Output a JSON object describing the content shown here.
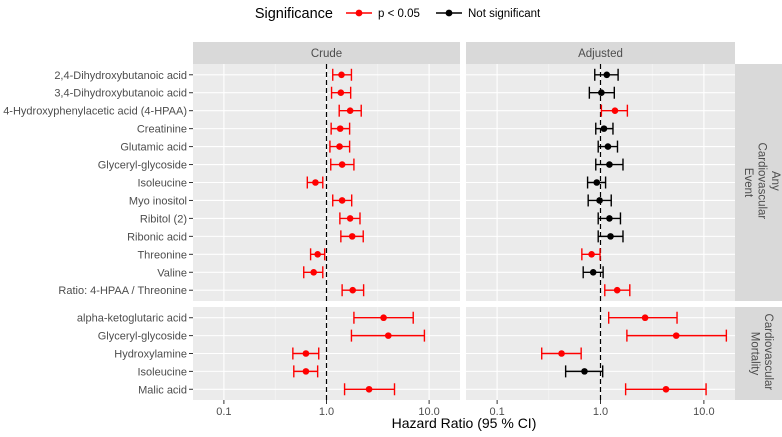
{
  "chart_data": {
    "type": "forest",
    "x_axis_label": "Hazard Ratio (95 % CI)",
    "x_scale": "log10",
    "xlim": [
      0.05,
      20
    ],
    "x_ticks": [
      0.1,
      1.0,
      10.0
    ],
    "x_tick_labels": [
      "0.1",
      "1.0",
      "10.0"
    ],
    "reference_line": 1.0,
    "legend": {
      "title": "Significance",
      "position": "top",
      "entries": [
        {
          "label": "p < 0.05",
          "color": "#ff0000"
        },
        {
          "label": "Not significant",
          "color": "#000000"
        }
      ]
    },
    "column_panels": [
      "Crude",
      "Adjusted"
    ],
    "row_panels": [
      {
        "title_lines": [
          "Any",
          "Cardiovascular",
          "Event"
        ],
        "rows": [
          {
            "label": "2,4-Dihydroxybutanoic acid",
            "crude": {
              "hr": 1.4,
              "lo": 1.15,
              "hi": 1.75,
              "sig": true
            },
            "adjusted": {
              "hr": 1.15,
              "lo": 0.88,
              "hi": 1.48,
              "sig": false
            }
          },
          {
            "label": "3,4-Dihydroxybutanoic acid",
            "crude": {
              "hr": 1.38,
              "lo": 1.12,
              "hi": 1.72,
              "sig": true
            },
            "adjusted": {
              "hr": 1.02,
              "lo": 0.78,
              "hi": 1.36,
              "sig": false
            }
          },
          {
            "label": "4-Hydroxyphenylacetic acid (4-HPAA)",
            "crude": {
              "hr": 1.7,
              "lo": 1.33,
              "hi": 2.18,
              "sig": true
            },
            "adjusted": {
              "hr": 1.38,
              "lo": 1.02,
              "hi": 1.82,
              "sig": true
            }
          },
          {
            "label": "Creatinine",
            "crude": {
              "hr": 1.36,
              "lo": 1.11,
              "hi": 1.68,
              "sig": true
            },
            "adjusted": {
              "hr": 1.08,
              "lo": 0.9,
              "hi": 1.32,
              "sig": false
            }
          },
          {
            "label": "Glutamic acid",
            "crude": {
              "hr": 1.34,
              "lo": 1.08,
              "hi": 1.68,
              "sig": true
            },
            "adjusted": {
              "hr": 1.18,
              "lo": 0.95,
              "hi": 1.46,
              "sig": false
            }
          },
          {
            "label": "Glyceryl-glycoside",
            "crude": {
              "hr": 1.42,
              "lo": 1.1,
              "hi": 1.85,
              "sig": true
            },
            "adjusted": {
              "hr": 1.22,
              "lo": 0.9,
              "hi": 1.65,
              "sig": false
            }
          },
          {
            "label": "Isoleucine",
            "crude": {
              "hr": 0.78,
              "lo": 0.65,
              "hi": 0.92,
              "sig": true
            },
            "adjusted": {
              "hr": 0.92,
              "lo": 0.75,
              "hi": 1.12,
              "sig": false
            }
          },
          {
            "label": "Myo inositol",
            "crude": {
              "hr": 1.42,
              "lo": 1.15,
              "hi": 1.76,
              "sig": true
            },
            "adjusted": {
              "hr": 0.98,
              "lo": 0.76,
              "hi": 1.27,
              "sig": false
            }
          },
          {
            "label": "Ribitol (2)",
            "crude": {
              "hr": 1.7,
              "lo": 1.35,
              "hi": 2.12,
              "sig": true
            },
            "adjusted": {
              "hr": 1.22,
              "lo": 0.95,
              "hi": 1.56,
              "sig": false
            }
          },
          {
            "label": "Ribonic acid",
            "crude": {
              "hr": 1.78,
              "lo": 1.38,
              "hi": 2.28,
              "sig": true
            },
            "adjusted": {
              "hr": 1.25,
              "lo": 0.95,
              "hi": 1.65,
              "sig": false
            }
          },
          {
            "label": "Threonine",
            "crude": {
              "hr": 0.82,
              "lo": 0.7,
              "hi": 0.96,
              "sig": true
            },
            "adjusted": {
              "hr": 0.82,
              "lo": 0.66,
              "hi": 0.99,
              "sig": true
            }
          },
          {
            "label": "Valine",
            "crude": {
              "hr": 0.75,
              "lo": 0.6,
              "hi": 0.92,
              "sig": true
            },
            "adjusted": {
              "hr": 0.85,
              "lo": 0.68,
              "hi": 1.06,
              "sig": false
            }
          },
          {
            "label": "Ratio: 4-HPAA / Threonine",
            "crude": {
              "hr": 1.8,
              "lo": 1.42,
              "hi": 2.3,
              "sig": true
            },
            "adjusted": {
              "hr": 1.45,
              "lo": 1.1,
              "hi": 1.92,
              "sig": true
            }
          }
        ]
      },
      {
        "title_lines": [
          "Cardiovascular",
          "Mortality"
        ],
        "rows": [
          {
            "label": "alpha-ketoglutaric acid",
            "crude": {
              "hr": 3.6,
              "lo": 1.85,
              "hi": 7.0,
              "sig": true
            },
            "adjusted": {
              "hr": 2.7,
              "lo": 1.2,
              "hi": 5.5,
              "sig": true
            }
          },
          {
            "label": "Glyceryl-glycoside",
            "crude": {
              "hr": 4.0,
              "lo": 1.75,
              "hi": 9.0,
              "sig": true
            },
            "adjusted": {
              "hr": 5.4,
              "lo": 1.8,
              "hi": 16.5,
              "sig": true
            }
          },
          {
            "label": "Hydroxylamine",
            "crude": {
              "hr": 0.63,
              "lo": 0.47,
              "hi": 0.84,
              "sig": true
            },
            "adjusted": {
              "hr": 0.42,
              "lo": 0.27,
              "hi": 0.65,
              "sig": true
            }
          },
          {
            "label": "Isoleucine",
            "crude": {
              "hr": 0.63,
              "lo": 0.48,
              "hi": 0.82,
              "sig": true
            },
            "adjusted": {
              "hr": 0.7,
              "lo": 0.46,
              "hi": 1.05,
              "sig": false
            }
          },
          {
            "label": "Malic acid",
            "crude": {
              "hr": 2.6,
              "lo": 1.5,
              "hi": 4.6,
              "sig": true
            },
            "adjusted": {
              "hr": 4.3,
              "lo": 1.75,
              "hi": 10.5,
              "sig": true
            }
          }
        ]
      }
    ]
  }
}
